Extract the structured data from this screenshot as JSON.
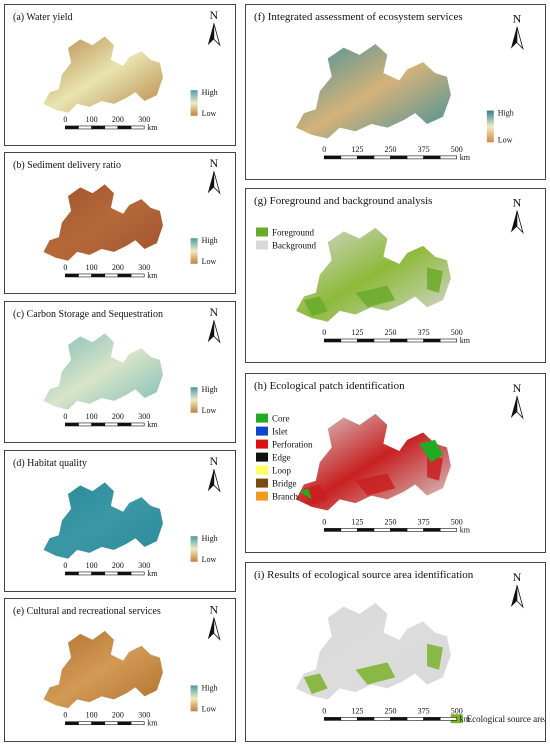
{
  "north_label": "N",
  "panels": [
    {
      "title": "(a) Water yield",
      "legend": [
        "High",
        "Low"
      ],
      "scale": [
        0,
        100,
        200,
        300
      ],
      "unit": "km"
    },
    {
      "title": "(b) Sediment delivery ratio",
      "legend": [
        "High",
        "Low"
      ],
      "scale": [
        0,
        100,
        200,
        300
      ],
      "unit": "km"
    },
    {
      "title": "(c) Carbon Storage and Sequestration",
      "legend": [
        "High",
        "Low"
      ],
      "scale": [
        0,
        100,
        200,
        300
      ],
      "unit": "km"
    },
    {
      "title": "(d) Habitat quality",
      "legend": [
        "High",
        "Low"
      ],
      "scale": [
        0,
        100,
        200,
        300
      ],
      "unit": "km"
    },
    {
      "title": "(e) Cultural and recreational services",
      "legend": [
        "High",
        "Low"
      ],
      "scale": [
        0,
        100,
        200,
        300
      ],
      "unit": "km"
    },
    {
      "title": "(f)  Integrated assessment of ecosystem services",
      "legend": [
        "High",
        "Low"
      ],
      "scale": [
        0,
        125,
        250,
        375,
        500
      ],
      "unit": "km"
    },
    {
      "title": "(g)  Foreground and background analysis",
      "legend": [
        "Foreground",
        "Background"
      ],
      "scale": [
        0,
        125,
        250,
        375,
        500
      ],
      "unit": "km"
    },
    {
      "title": "(h)  Ecological patch identification",
      "legend": [
        "Core",
        "Islet",
        "Perforation",
        "Edge",
        "Loop",
        "Bridge",
        "Branch"
      ],
      "scale": [
        0,
        125,
        250,
        375,
        500
      ],
      "unit": "km"
    },
    {
      "title": "(i)  Results of ecological source area identification",
      "legend": [
        "Ecological source area"
      ],
      "scale": [
        0,
        125,
        250,
        375,
        500
      ],
      "unit": "km"
    }
  ]
}
